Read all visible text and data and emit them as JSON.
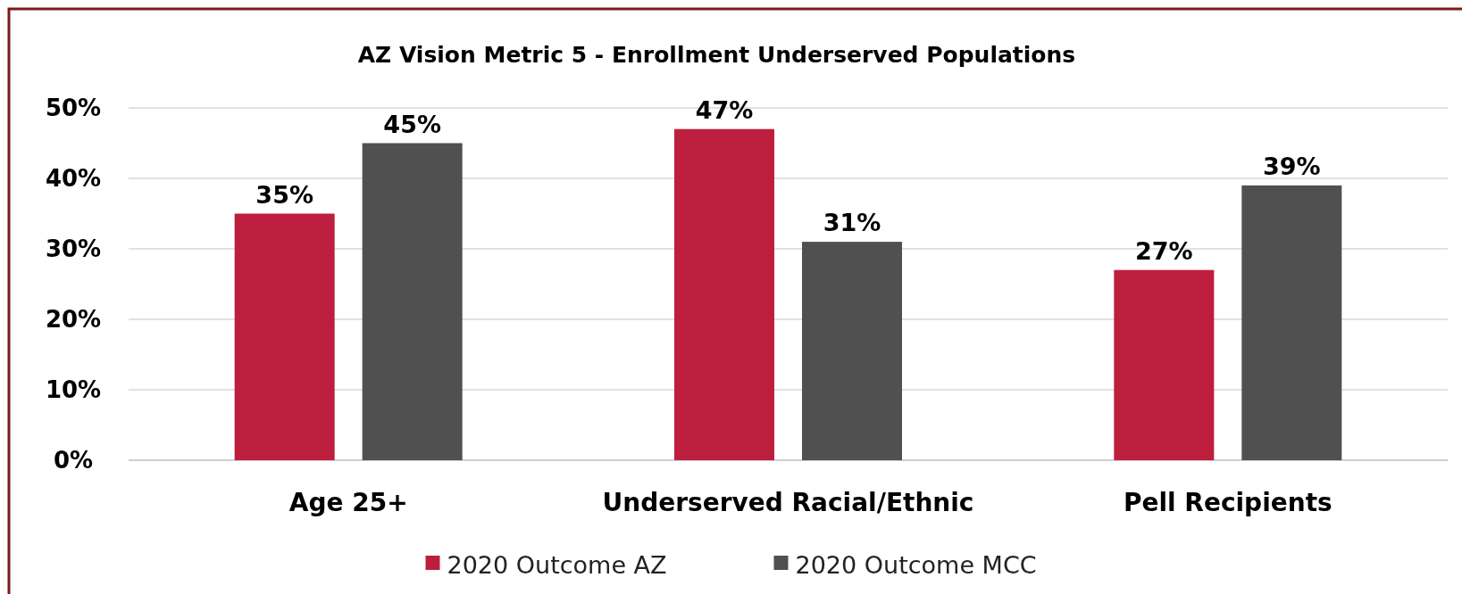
{
  "chart_data": {
    "type": "bar",
    "title": "AZ Vision Metric 5 - Enrollment Underserved Populations",
    "categories": [
      "Age 25+",
      "Underserved Racial/Ethnic",
      "Pell Recipients"
    ],
    "series": [
      {
        "name": "2020 Outcome AZ",
        "color": "#be1e3d",
        "values": [
          35,
          47,
          27
        ],
        "value_labels": [
          "35%",
          "47%",
          "27%"
        ]
      },
      {
        "name": "2020 Outcome MCC",
        "color": "#505050",
        "values": [
          45,
          31,
          39
        ],
        "value_labels": [
          "45%",
          "31%",
          "39%"
        ]
      }
    ],
    "ylim": [
      0,
      50
    ],
    "yticks": [
      {
        "value": 0,
        "label": "0%"
      },
      {
        "value": 10,
        "label": "10%"
      },
      {
        "value": 20,
        "label": "20%"
      },
      {
        "value": 30,
        "label": "30%"
      },
      {
        "value": 40,
        "label": "40%"
      },
      {
        "value": 50,
        "label": "50%"
      }
    ],
    "grid": "y",
    "legend": "bottom"
  }
}
